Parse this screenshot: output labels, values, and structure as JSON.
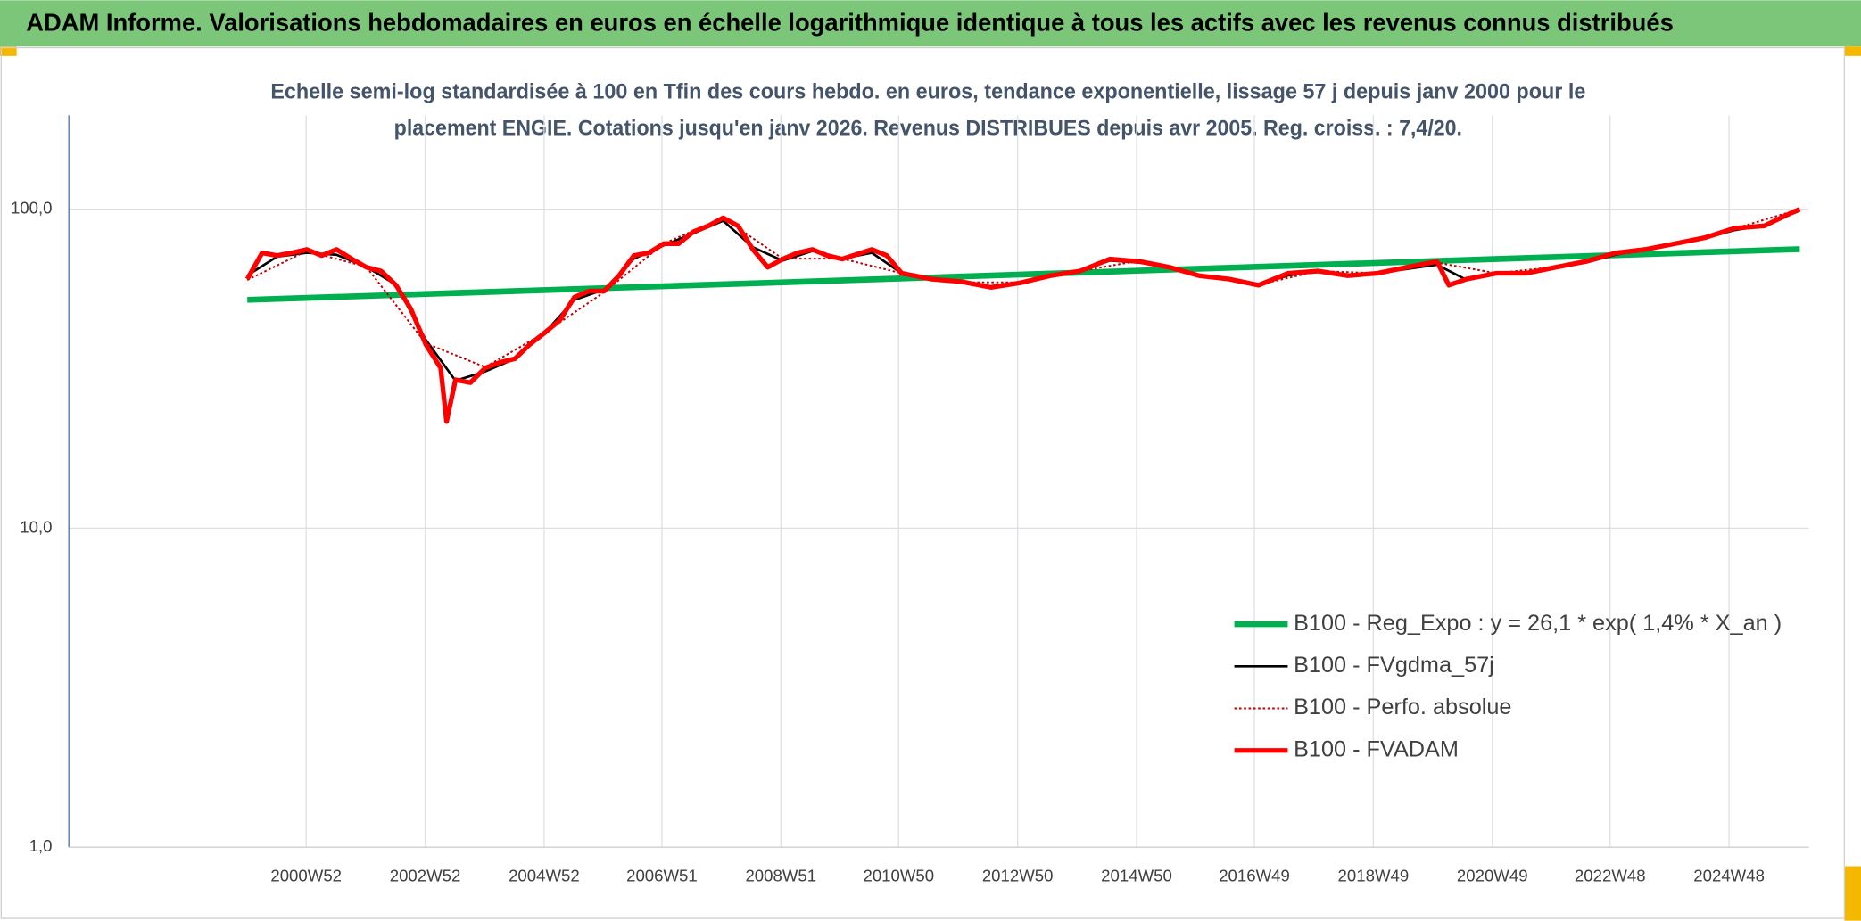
{
  "header": {
    "title": "ADAM Informe. Valorisations hebdomadaires en euros en échelle logarithmique identique à tous les actifs avec les revenus connus distribués"
  },
  "chart_data": {
    "type": "line",
    "subtitle": [
      "Echelle semi-log standardisée à 100 en Tfin des cours hebdo. en euros, tendance exponentielle, lissage 57 j depuis janv 2000 pour le",
      "placement ENGIE. Cotations jusqu'en janv 2026. Revenus DISTRIBUES depuis avr 2005. Reg. croiss. : 7,4/20."
    ],
    "log_y": true,
    "grid": true,
    "legend": "lower right",
    "xlim": [
      1997,
      2026.25
    ],
    "xticks": [
      {
        "value": 2000.99,
        "label": "2000W52"
      },
      {
        "value": 2002.99,
        "label": "2002W52"
      },
      {
        "value": 2004.99,
        "label": "2004W52"
      },
      {
        "value": 2006.97,
        "label": "2006W51"
      },
      {
        "value": 2008.97,
        "label": "2008W51"
      },
      {
        "value": 2010.95,
        "label": "2010W50"
      },
      {
        "value": 2012.95,
        "label": "2012W50"
      },
      {
        "value": 2014.95,
        "label": "2014W50"
      },
      {
        "value": 2016.93,
        "label": "2016W49"
      },
      {
        "value": 2018.93,
        "label": "2018W49"
      },
      {
        "value": 2020.93,
        "label": "2020W49"
      },
      {
        "value": 2022.91,
        "label": "2022W48"
      },
      {
        "value": 2024.91,
        "label": "2024W48"
      }
    ],
    "ylim": [
      1,
      197
    ],
    "yticks": [
      {
        "value": 1,
        "label": "1,0"
      },
      {
        "value": 10,
        "label": "10,0"
      },
      {
        "value": 100,
        "label": "100,0"
      }
    ],
    "series": [
      {
        "name": "B100 - Reg_Expo : y = 26,1 * exp( 1,4% *  X_an )",
        "color": "#00b050",
        "width": 5,
        "dash": "none",
        "x": [
          2000,
          2026.1
        ],
        "values": [
          52,
          75
        ]
      },
      {
        "name": "B100 - FVgdma_57j",
        "color": "#000000",
        "width": 2,
        "dash": "none",
        "x": [
          2000,
          2000.5,
          2001,
          2001.5,
          2002,
          2002.5,
          2003,
          2003.5,
          2004,
          2004.5,
          2005,
          2005.5,
          2006,
          2006.5,
          2007,
          2007.5,
          2008,
          2008.5,
          2009,
          2009.5,
          2010,
          2010.5,
          2011,
          2011.5,
          2012,
          2012.5,
          2013,
          2013.5,
          2014,
          2014.5,
          2015,
          2015.5,
          2016,
          2016.5,
          2017,
          2017.5,
          2018,
          2018.5,
          2019,
          2019.5,
          2020,
          2020.5,
          2021,
          2021.5,
          2022,
          2022.5,
          2023,
          2023.5,
          2024,
          2024.5,
          2025,
          2025.5,
          2026.1
        ],
        "values": [
          62,
          71,
          73,
          72,
          66,
          58,
          39,
          29,
          31,
          34,
          41,
          52,
          56,
          70,
          77,
          84,
          92,
          76,
          69,
          74,
          70,
          73,
          63,
          60,
          59,
          57,
          59,
          62,
          64,
          69,
          68,
          66,
          62,
          60,
          58,
          62,
          64,
          62,
          63,
          65,
          67,
          60,
          63,
          63,
          66,
          68,
          72,
          75,
          78,
          81,
          86,
          89,
          99
        ]
      },
      {
        "name": "B100 - Perfo. absolue",
        "color": "#c00000",
        "width": 1.5,
        "dash": "2 2",
        "x": [
          2000,
          2001,
          2002,
          2003,
          2004,
          2005,
          2006,
          2007,
          2008,
          2009,
          2010,
          2011,
          2012,
          2013,
          2014,
          2015,
          2016,
          2017,
          2018,
          2019,
          2020,
          2021,
          2022,
          2023,
          2024,
          2025,
          2026.1
        ],
        "values": [
          60,
          74,
          66,
          38,
          32,
          41,
          55,
          78,
          94,
          70,
          70,
          63,
          59,
          59,
          64,
          69,
          62,
          58,
          64,
          63,
          68,
          63,
          66,
          73,
          78,
          87,
          100
        ]
      },
      {
        "name": "B100 - FVADAM",
        "color": "#ff0000",
        "width": 4,
        "dash": "none",
        "x": [
          2000,
          2000.25,
          2000.5,
          2000.75,
          2001,
          2001.25,
          2001.5,
          2001.75,
          2002,
          2002.25,
          2002.5,
          2002.75,
          2003,
          2003.25,
          2003.35,
          2003.5,
          2003.75,
          2004,
          2004.25,
          2004.5,
          2004.75,
          2005,
          2005.25,
          2005.5,
          2005.75,
          2006,
          2006.25,
          2006.5,
          2006.75,
          2007,
          2007.25,
          2007.5,
          2007.75,
          2008,
          2008.25,
          2008.5,
          2008.75,
          2009,
          2009.25,
          2009.5,
          2009.75,
          2010,
          2010.5,
          2010.75,
          2011,
          2011.5,
          2012,
          2012.5,
          2013,
          2013.5,
          2014,
          2014.5,
          2015,
          2015.5,
          2016,
          2016.5,
          2017,
          2017.5,
          2018,
          2018.5,
          2019,
          2019.5,
          2020,
          2020.2,
          2020.5,
          2021,
          2021.5,
          2022,
          2022.5,
          2023,
          2023.5,
          2024,
          2024.5,
          2025,
          2025.5,
          2026,
          2026.1
        ],
        "values": [
          60.4,
          73,
          71.6,
          73,
          74.8,
          71.6,
          74.8,
          70,
          65.8,
          64,
          57.8,
          48.7,
          37.7,
          31.8,
          21.6,
          29.2,
          28.6,
          31.8,
          33.1,
          34,
          37.7,
          41,
          44.8,
          53,
          55.4,
          55.4,
          61.9,
          71.6,
          73,
          78,
          78,
          85,
          88.7,
          94,
          88.7,
          74.8,
          65.8,
          69.8,
          73,
          74.8,
          71.6,
          69.8,
          74.8,
          71.6,
          63,
          60.4,
          59.3,
          56.9,
          58.8,
          61.9,
          64,
          69.8,
          68.6,
          65.8,
          61.9,
          60.4,
          57.8,
          63,
          64,
          61.9,
          63,
          65.8,
          68.6,
          57.8,
          60.4,
          63,
          63,
          65.8,
          68.6,
          72.9,
          74.8,
          78,
          81.4,
          87.2,
          88.7,
          98.3,
          100
        ]
      }
    ]
  }
}
